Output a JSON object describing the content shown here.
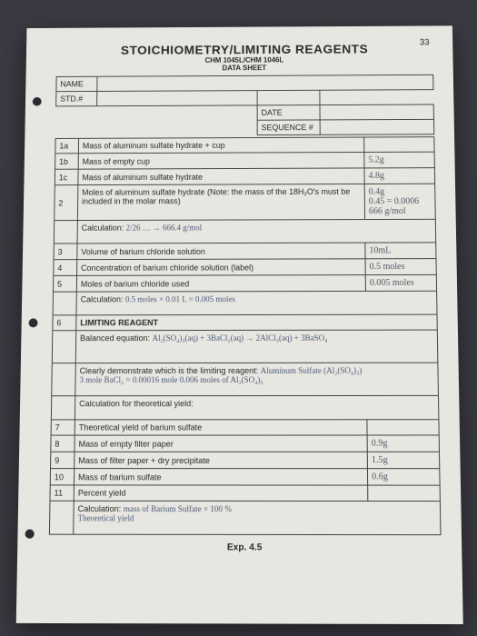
{
  "page_number": "33",
  "title": "STOICHIOMETRY/LIMITING REAGENTS",
  "subtitle": "CHM 1045L/CHM 1046L",
  "subtitle2": "DATA SHEET",
  "header_labels": {
    "name": "NAME",
    "std": "STD.#",
    "date": "DATE",
    "seq": "SEQUENCE #"
  },
  "header_values": {
    "name": "",
    "std": "",
    "date": "",
    "seq": ""
  },
  "rows": [
    {
      "n": "1a",
      "label": "Mass of aluminum sulfate hydrate + cup",
      "val": ""
    },
    {
      "n": "1b",
      "label": "Mass of empty cup",
      "val": "5.2g"
    },
    {
      "n": "1c",
      "label": "Mass of aluminum sulfate hydrate",
      "val": "4.8g"
    },
    {
      "n": "2",
      "label": "Moles of aluminum sulfate hydrate (Note: the mass of the 18H₂O's must be included in the molar mass)",
      "val": "0.4g\n0.45 = 0.0006\n666 g/mol"
    },
    {
      "n": "",
      "label": "Calculation:",
      "val": "",
      "calc": "2/26  …  → 666.4 g/mol"
    },
    {
      "n": "3",
      "label": "Volume of barium chloride solution",
      "val": "10mL"
    },
    {
      "n": "4",
      "label": "Concentration of barium chloride solution (label)",
      "val": "0.5 moles"
    },
    {
      "n": "5",
      "label": "Moles of barium chloride used",
      "val": "0.005 moles"
    },
    {
      "n": "",
      "label": "Calculation:",
      "val": "",
      "calc": "0.5 moles × 0.01 L = 0.005 moles"
    },
    {
      "n": "6",
      "label": "LIMITING REAGENT",
      "val": "",
      "section": true
    },
    {
      "n": "",
      "label": "Balanced equation:",
      "val": "",
      "calc": "Al₂(SO₄)₃(aq) + 3BaCl₂(aq) → 2AlCl₃(aq) + 3BaSO₄"
    },
    {
      "n": "",
      "label": "Clearly demonstrate which is the limiting reagent:",
      "val": "",
      "calc": "Aluminum Sulfate (Al₂(SO₄)₃)\n3 mole BaCl₂ = 0.00016 mole   0.006 moles of Al₂(SO₄)₃"
    },
    {
      "n": "",
      "label": "Calculation for theoretical yield:",
      "val": "",
      "calc": ""
    },
    {
      "n": "7",
      "label": "Theoretical yield of barium sulfate",
      "val": ""
    },
    {
      "n": "8",
      "label": "Mass of empty filter paper",
      "val": "0.9g"
    },
    {
      "n": "9",
      "label": "Mass of filter paper + dry precipitate",
      "val": "1.5g"
    },
    {
      "n": "10",
      "label": "Mass of barium sulfate",
      "val": "0.6g"
    },
    {
      "n": "11",
      "label": "Percent yield",
      "val": ""
    },
    {
      "n": "",
      "label": "Calculation:",
      "val": "",
      "calc": "mass of Barium Sulfate × 100 %\nTheoretical yield"
    }
  ],
  "exp": "Exp. 4.5",
  "colors": {
    "paper": "#e8e6e0",
    "border": "#444444",
    "text": "#2a2a2a",
    "hand": "#4a5a7a",
    "bg": "#3a3a42"
  }
}
